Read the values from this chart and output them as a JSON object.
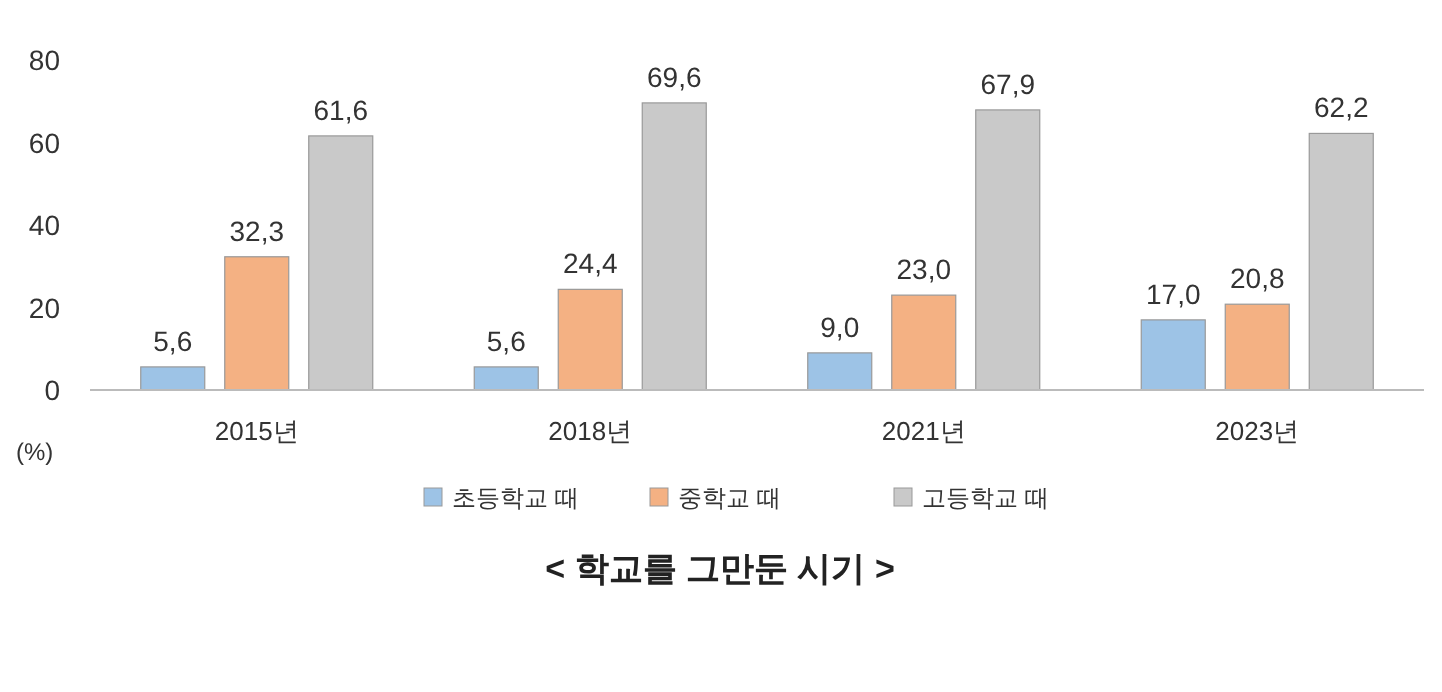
{
  "chart_data": {
    "type": "bar",
    "title": "< 학교를 그만둔 시기 >",
    "categories": [
      "2015년",
      "2018년",
      "2021년",
      "2023년"
    ],
    "series": [
      {
        "name": "초등학교 때",
        "color": "#9dc3e6",
        "values": [
          5.6,
          5.6,
          9.0,
          17.0
        ],
        "value_labels": [
          "5,6",
          "5,6",
          "9,0",
          "17,0"
        ]
      },
      {
        "name": "중학교 때",
        "color": "#f4b183",
        "values": [
          32.3,
          24.4,
          23.0,
          20.8
        ],
        "value_labels": [
          "32,3",
          "24,4",
          "23,0",
          "20,8"
        ]
      },
      {
        "name": "고등학교 때",
        "color": "#c9c9c9",
        "values": [
          61.6,
          69.6,
          67.9,
          62.2
        ],
        "value_labels": [
          "61,6",
          "69,6",
          "67,9",
          "62,2"
        ]
      }
    ],
    "ylim": [
      0,
      80
    ],
    "yticks": [
      0,
      20,
      40,
      60,
      80
    ],
    "grid": false,
    "legend": "bottom",
    "annotations": [
      "(%)"
    ]
  }
}
